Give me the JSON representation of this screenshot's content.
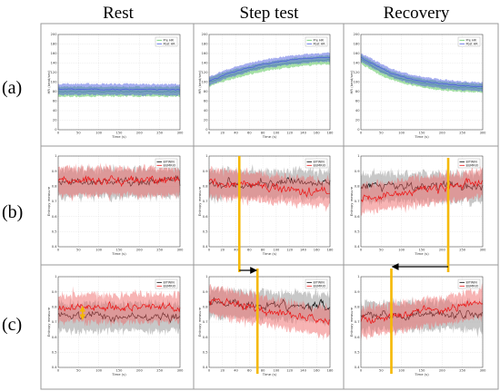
{
  "column_titles": [
    "Rest",
    "Step test",
    "Recovery"
  ],
  "row_labels": [
    "(a)",
    "(b)",
    "(c)"
  ],
  "colors": {
    "pre_hr": "#5cc85c",
    "post_hr": "#4b5be0",
    "bitwin": "#000000",
    "bumrio": "#ee1111",
    "marker": "#f5b800",
    "grid": "#cccccc"
  },
  "chart_data": [
    {
      "id": "rest-hr",
      "type": "line",
      "xlabel": "Time (s)",
      "ylabel": "HR (beat/sec)",
      "xlim": [
        0,
        300
      ],
      "ylim": [
        0,
        200
      ],
      "xticks": [
        0,
        50,
        100,
        150,
        200,
        250,
        300
      ],
      "yticks": [
        0,
        20,
        40,
        60,
        80,
        100,
        120,
        140,
        160,
        180,
        200
      ],
      "legend_position": "top-right",
      "series": [
        {
          "name": "Pre HR",
          "x": [
            0,
            300
          ],
          "mean": [
            80,
            80
          ],
          "band": [
            70,
            92
          ]
        },
        {
          "name": "Post HR",
          "x": [
            0,
            300
          ],
          "mean": [
            85,
            84
          ],
          "band": [
            73,
            98
          ]
        }
      ]
    },
    {
      "id": "step-hr",
      "type": "line",
      "xlabel": "Time (s)",
      "ylabel": "HR (beat/sec)",
      "xlim": [
        0,
        180
      ],
      "ylim": [
        0,
        200
      ],
      "xticks": [
        0,
        20,
        40,
        60,
        80,
        100,
        120,
        140,
        160,
        180
      ],
      "yticks": [
        0,
        20,
        40,
        60,
        80,
        100,
        120,
        140,
        160,
        180,
        200
      ],
      "legend_position": "top-right",
      "series": [
        {
          "name": "Pre HR",
          "x": [
            0,
            20,
            40,
            60,
            80,
            100,
            120,
            140,
            160,
            180
          ],
          "mean": [
            100,
            110,
            118,
            125,
            131,
            136,
            140,
            143,
            145,
            147
          ]
        },
        {
          "name": "Post HR",
          "x": [
            0,
            20,
            40,
            60,
            80,
            100,
            120,
            140,
            160,
            180
          ],
          "mean": [
            102,
            114,
            123,
            131,
            137,
            142,
            146,
            149,
            151,
            152
          ]
        }
      ]
    },
    {
      "id": "recovery-hr",
      "type": "line",
      "xlabel": "Time (s)",
      "ylabel": "HR (beat/sec)",
      "xlim": [
        0,
        300
      ],
      "ylim": [
        0,
        200
      ],
      "xticks": [
        0,
        50,
        100,
        150,
        200,
        250,
        300
      ],
      "yticks": [
        0,
        20,
        40,
        60,
        80,
        100,
        120,
        140,
        160,
        180,
        200
      ],
      "legend_position": "top-right",
      "series": [
        {
          "name": "Pre HR",
          "x": [
            0,
            25,
            50,
            75,
            100,
            125,
            150,
            175,
            200,
            225,
            250,
            275,
            300
          ],
          "mean": [
            148,
            135,
            123,
            114,
            107,
            102,
            98,
            95,
            92,
            90,
            89,
            88,
            87
          ]
        },
        {
          "name": "Post HR",
          "x": [
            0,
            25,
            50,
            75,
            100,
            125,
            150,
            175,
            200,
            225,
            250,
            275,
            300
          ],
          "mean": [
            152,
            140,
            129,
            119,
            112,
            106,
            102,
            99,
            96,
            94,
            92,
            91,
            90
          ]
        }
      ]
    },
    {
      "id": "rest-entropy",
      "type": "line",
      "xlabel": "Time (s)",
      "ylabel": "Entropy measure",
      "xlim": [
        0,
        300
      ],
      "ylim": [
        0.4,
        1.0
      ],
      "xticks": [
        0,
        50,
        100,
        150,
        200,
        250,
        300
      ],
      "yticks": [
        0.4,
        0.5,
        0.6,
        0.7,
        0.8,
        0.9,
        1.0
      ],
      "legend_position": "top-right",
      "series": [
        {
          "name": "BITWIN",
          "mean_level": 0.83
        },
        {
          "name": "BUMRIO",
          "mean_level": 0.84
        }
      ]
    },
    {
      "id": "step-entropy",
      "type": "line",
      "xlabel": "Time (s)",
      "ylabel": "Entropy measure",
      "xlim": [
        0,
        180
      ],
      "ylim": [
        0.4,
        1.0
      ],
      "xticks": [
        0,
        20,
        40,
        60,
        80,
        100,
        120,
        140,
        160,
        180
      ],
      "yticks": [
        0.4,
        0.5,
        0.6,
        0.7,
        0.8,
        0.9,
        1.0
      ],
      "legend_position": "top-right",
      "series": [
        {
          "name": "BITWIN",
          "mean_level": 0.82
        },
        {
          "name": "BUMRIO",
          "mean_start": 0.83,
          "mean_end": 0.76
        }
      ],
      "marker_x": 45
    },
    {
      "id": "recovery-entropy",
      "type": "line",
      "xlabel": "Time (s)",
      "ylabel": "Entropy measure",
      "xlim": [
        0,
        300
      ],
      "ylim": [
        0.4,
        1.0
      ],
      "xticks": [
        0,
        50,
        100,
        150,
        200,
        250,
        300
      ],
      "yticks": [
        0.4,
        0.5,
        0.6,
        0.7,
        0.8,
        0.9,
        1.0
      ],
      "legend_position": "top-right",
      "series": [
        {
          "name": "BITWIN",
          "mean_level": 0.8
        },
        {
          "name": "BUMRIO",
          "mean_start": 0.72,
          "mean_end": 0.83
        }
      ],
      "marker_x": 215
    },
    {
      "id": "rest-entropy-2",
      "type": "line",
      "xlabel": "Time (s)",
      "ylabel": "Entropy measure",
      "xlim": [
        0,
        300
      ],
      "ylim": [
        0.4,
        1.0
      ],
      "xticks": [
        0,
        50,
        100,
        150,
        200,
        250,
        300
      ],
      "yticks": [
        0.4,
        0.5,
        0.6,
        0.7,
        0.8,
        0.9,
        1.0
      ],
      "legend_position": "top-right",
      "series": [
        {
          "name": "BITWIN",
          "mean_level": 0.74
        },
        {
          "name": "BUMRIO",
          "mean_level": 0.8
        }
      ],
      "annotation": {
        "type": "double-arrow",
        "x": 60,
        "y_from": 0.72,
        "y_to": 0.8
      }
    },
    {
      "id": "step-entropy-2",
      "type": "line",
      "xlabel": "Time (s)",
      "ylabel": "Entropy measure",
      "xlim": [
        0,
        180
      ],
      "ylim": [
        0.4,
        1.0
      ],
      "xticks": [
        0,
        20,
        40,
        60,
        80,
        100,
        120,
        140,
        160,
        180
      ],
      "yticks": [
        0.4,
        0.5,
        0.6,
        0.7,
        0.8,
        0.9,
        1.0
      ],
      "legend_position": "top-right",
      "series": [
        {
          "name": "BITWIN",
          "mean_start": 0.83,
          "mean_end": 0.8
        },
        {
          "name": "BUMRIO",
          "mean_start": 0.85,
          "mean_end": 0.7
        }
      ],
      "marker_x": 72
    },
    {
      "id": "recovery-entropy-2",
      "type": "line",
      "xlabel": "Time (s)",
      "ylabel": "Entropy measure",
      "xlim": [
        0,
        300
      ],
      "ylim": [
        0.4,
        1.0
      ],
      "xticks": [
        0,
        50,
        100,
        150,
        200,
        250,
        300
      ],
      "yticks": [
        0.4,
        0.5,
        0.6,
        0.7,
        0.8,
        0.9,
        1.0
      ],
      "legend_position": "top-right",
      "series": [
        {
          "name": "BITWIN",
          "mean_level": 0.75
        },
        {
          "name": "BUMRIO",
          "mean_start": 0.7,
          "mean_end": 0.83
        }
      ],
      "marker_x": 75
    }
  ],
  "between_row_arrows": [
    {
      "id": "arrow-step",
      "from_x": 45,
      "to_x": 72,
      "direction": "right"
    },
    {
      "id": "arrow-recovery",
      "from_x": 215,
      "to_x": 75,
      "direction": "left"
    }
  ]
}
